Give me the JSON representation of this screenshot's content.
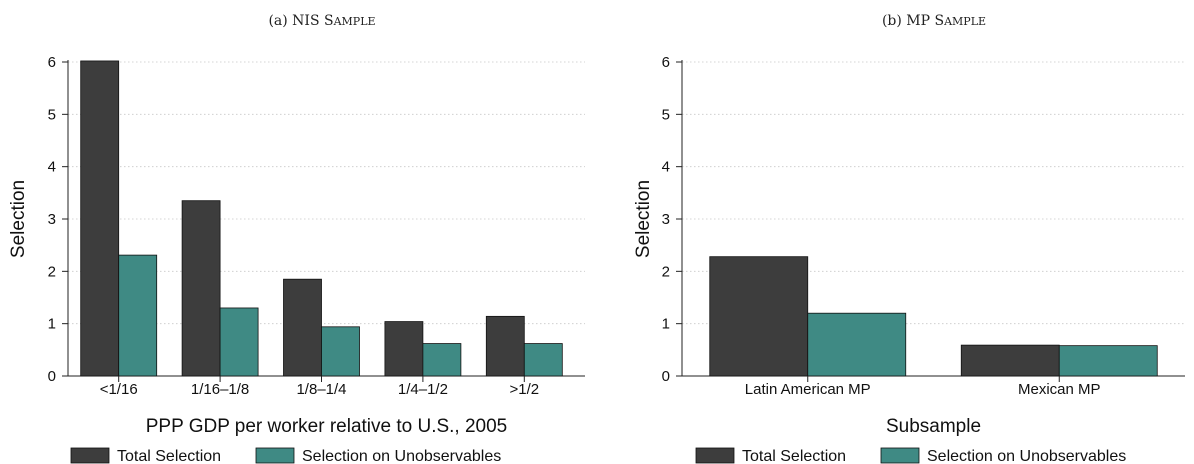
{
  "chart_data": [
    {
      "type": "bar",
      "title": "(a) NIS Sample",
      "xlabel": "PPP GDP per worker relative to U.S., 2005",
      "ylabel": "Selection",
      "ylim": [
        0,
        6
      ],
      "yticks": [
        0,
        1,
        2,
        3,
        4,
        5,
        6
      ],
      "grid": true,
      "legend_position": "bottom",
      "categories": [
        "<1/16",
        "1/16–1/8",
        "1/8–1/4",
        "1/4–1/2",
        ">1/2"
      ],
      "series": [
        {
          "name": "Total Selection",
          "color": "#3d3d3d",
          "values": [
            6.02,
            3.35,
            1.85,
            1.04,
            1.14
          ]
        },
        {
          "name": "Selection on Unobservables",
          "color": "#3f8a84",
          "values": [
            2.31,
            1.3,
            0.94,
            0.62,
            0.62
          ]
        }
      ]
    },
    {
      "type": "bar",
      "title": "(b) MP Sample",
      "xlabel": "Subsample",
      "ylabel": "Selection",
      "ylim": [
        0,
        6
      ],
      "yticks": [
        0,
        1,
        2,
        3,
        4,
        5,
        6
      ],
      "grid": true,
      "legend_position": "bottom",
      "categories": [
        "Latin American MP",
        "Mexican MP"
      ],
      "series": [
        {
          "name": "Total Selection",
          "color": "#3d3d3d",
          "values": [
            2.28,
            0.59
          ]
        },
        {
          "name": "Selection on Unobservables",
          "color": "#3f8a84",
          "values": [
            1.2,
            0.58
          ]
        }
      ]
    }
  ]
}
